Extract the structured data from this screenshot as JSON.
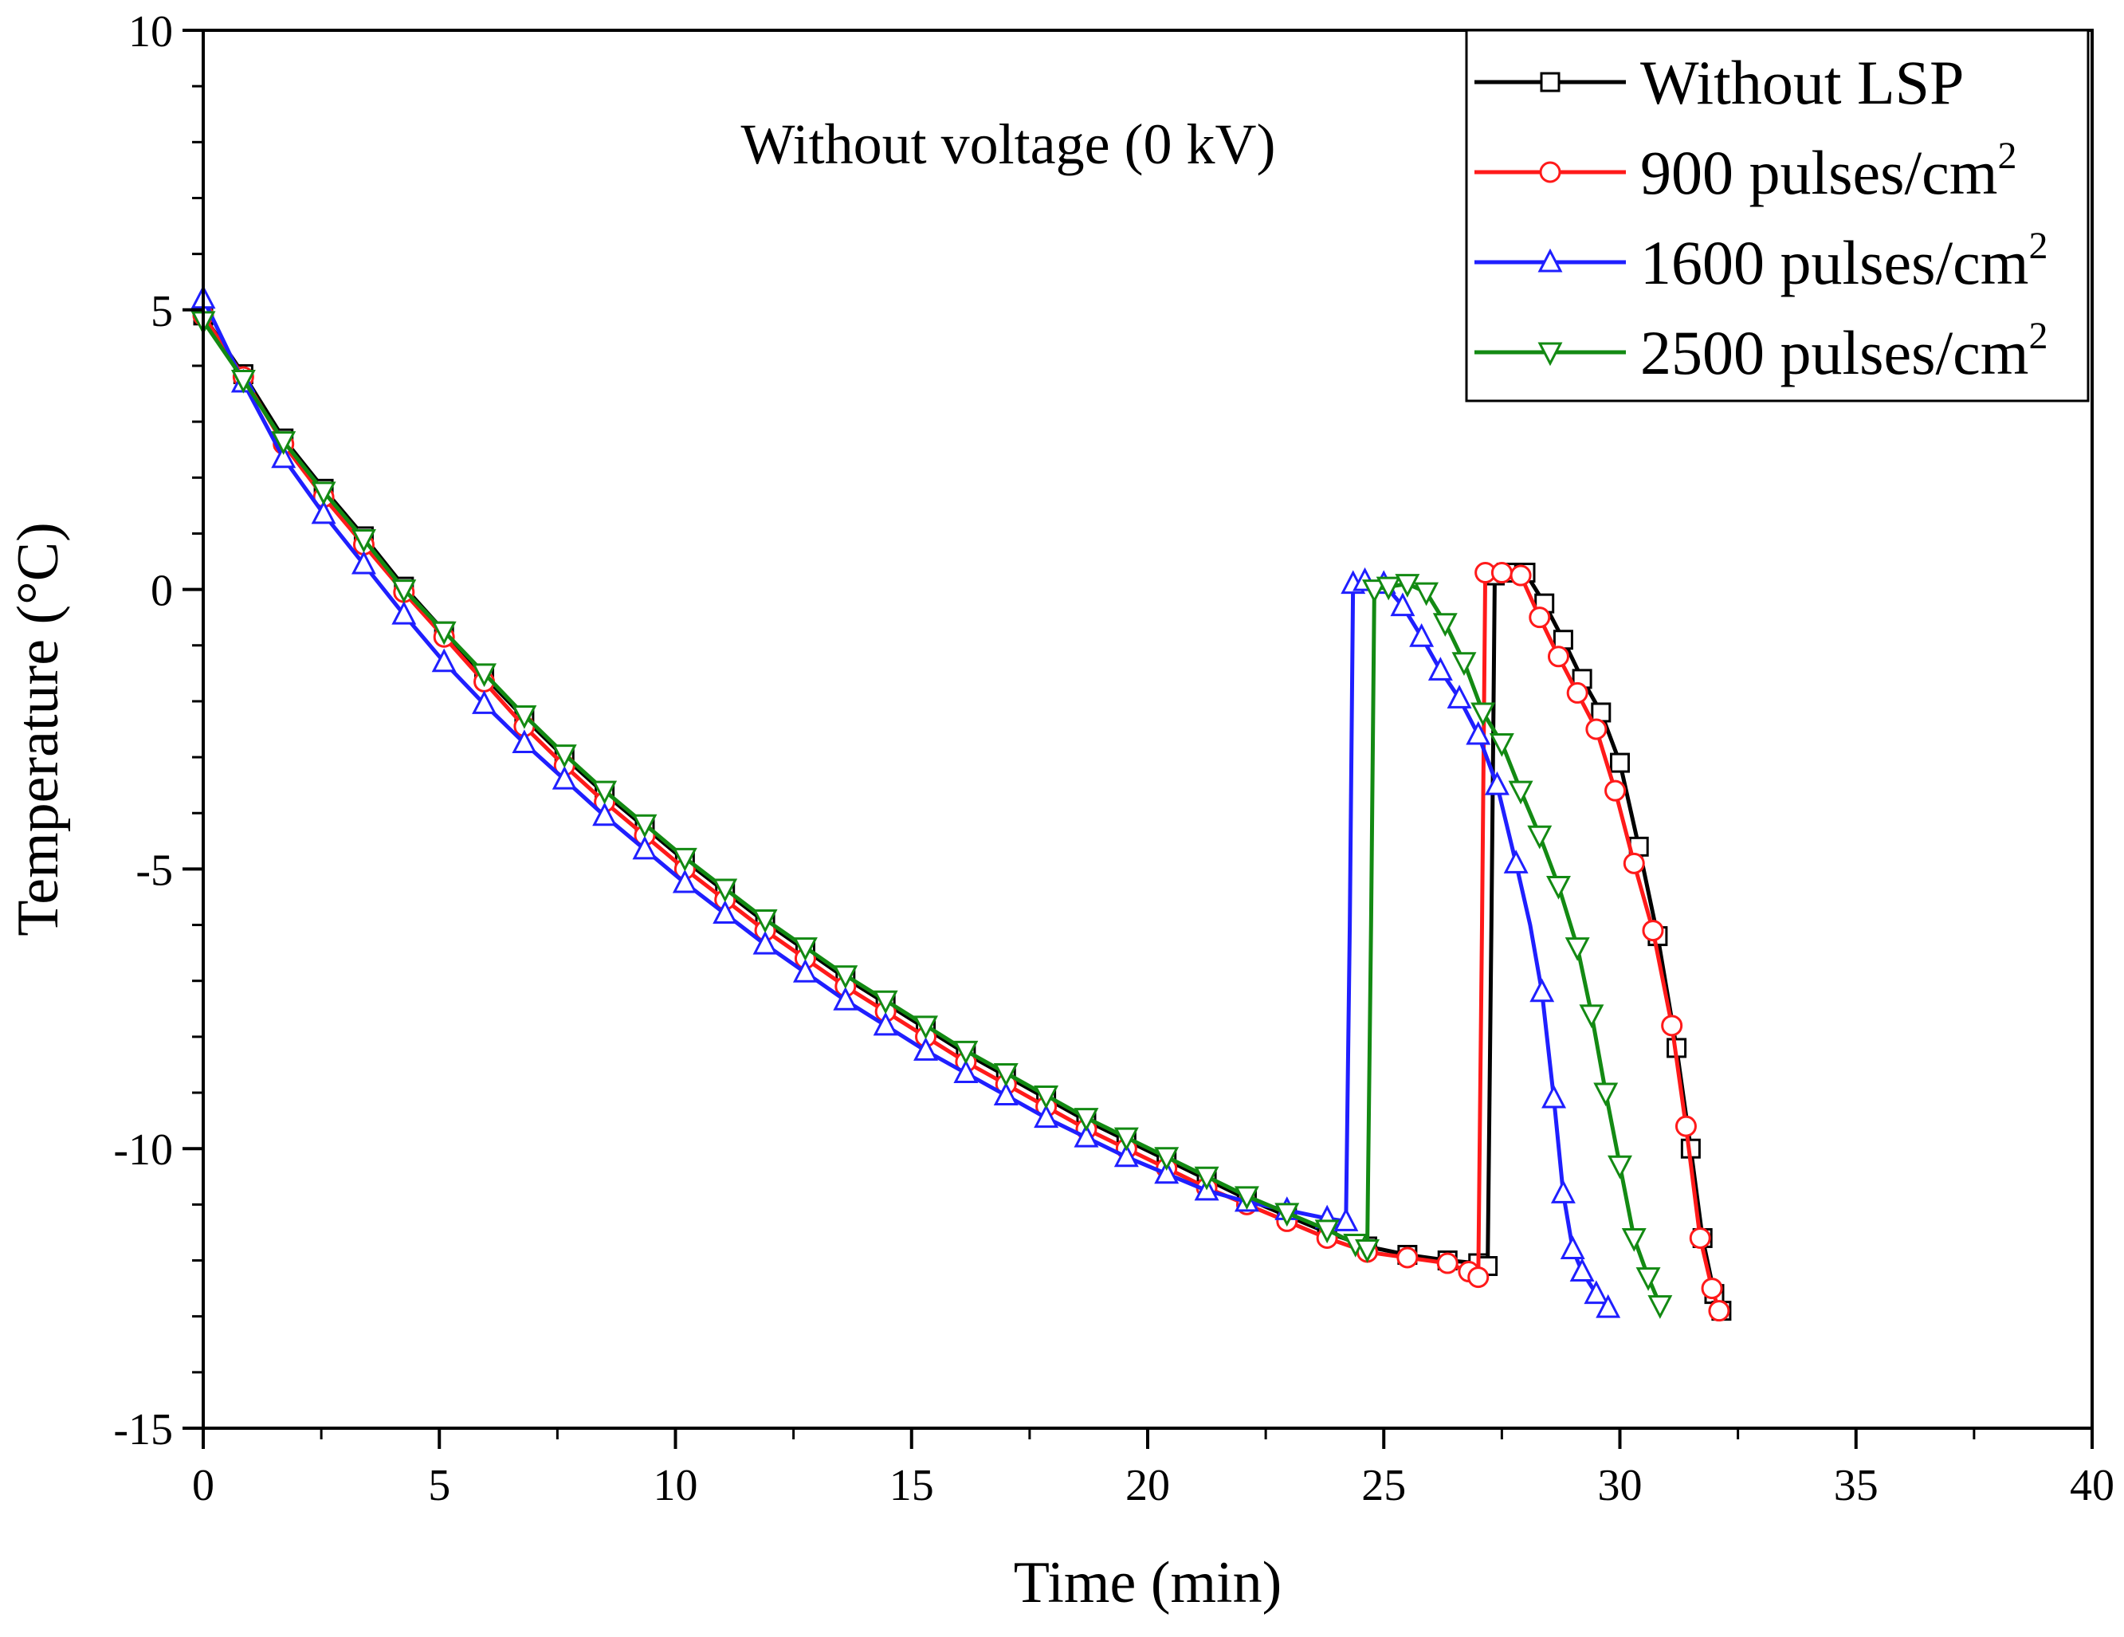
{
  "chart_data": {
    "type": "line",
    "title": "",
    "annotation": "Without voltage (0 kV)",
    "xlabel": "Time (min)",
    "ylabel": "Temperature (°C)",
    "xlim": [
      0,
      40
    ],
    "ylim": [
      -15,
      10
    ],
    "xticks": [
      0,
      5,
      10,
      15,
      20,
      25,
      30,
      35,
      40
    ],
    "xtick_labels": [
      "0",
      "5",
      "10",
      "15",
      "20",
      "25",
      "30",
      "35",
      "40"
    ],
    "yticks": [
      -15,
      -10,
      -5,
      0,
      5,
      10
    ],
    "ytick_labels": [
      "-15",
      "-10",
      "-5",
      "0",
      "5",
      "10"
    ],
    "grid": false,
    "legend_position": "top-right",
    "series": [
      {
        "name": "Without LSP",
        "legend_main": "Without LSP",
        "legend_sup": "",
        "color": "#000000",
        "marker": "square",
        "points": [
          [
            0,
            4.9
          ],
          [
            0.85,
            3.85
          ],
          [
            1.7,
            2.7
          ],
          [
            2.55,
            1.8
          ],
          [
            3.4,
            0.95
          ],
          [
            4.25,
            0.05
          ],
          [
            5.1,
            -0.75
          ],
          [
            5.95,
            -1.55
          ],
          [
            6.8,
            -2.3
          ],
          [
            7.65,
            -3.0
          ],
          [
            8.5,
            -3.65
          ],
          [
            9.35,
            -4.25
          ],
          [
            10.2,
            -4.85
          ],
          [
            11.05,
            -5.4
          ],
          [
            11.9,
            -5.95
          ],
          [
            12.75,
            -6.45
          ],
          [
            13.6,
            -6.95
          ],
          [
            14.45,
            -7.4
          ],
          [
            15.3,
            -7.85
          ],
          [
            16.15,
            -8.3
          ],
          [
            17.0,
            -8.7
          ],
          [
            17.85,
            -9.1
          ],
          [
            18.7,
            -9.5
          ],
          [
            19.55,
            -9.85
          ],
          [
            20.4,
            -10.2
          ],
          [
            21.25,
            -10.55
          ],
          [
            22.1,
            -10.9
          ],
          [
            22.95,
            -11.2
          ],
          [
            23.8,
            -11.5
          ],
          [
            24.65,
            -11.75
          ],
          [
            25.5,
            -11.9
          ],
          [
            26.35,
            -12.0
          ],
          [
            27.0,
            -12.05
          ],
          [
            27.2,
            -12.1
          ],
          [
            27.28,
            -6.0
          ],
          [
            27.35,
            0.25
          ],
          [
            27.6,
            0.3
          ],
          [
            28.0,
            0.3
          ],
          [
            28.4,
            -0.25
          ],
          [
            28.8,
            -0.9
          ],
          [
            29.2,
            -1.6
          ],
          [
            29.6,
            -2.2
          ],
          [
            30.0,
            -3.1
          ],
          [
            30.4,
            -4.6
          ],
          [
            30.8,
            -6.2
          ],
          [
            31.2,
            -8.2
          ],
          [
            31.5,
            -10.0
          ],
          [
            31.75,
            -11.6
          ],
          [
            32.0,
            -12.6
          ],
          [
            32.15,
            -12.9
          ]
        ]
      },
      {
        "name": "900 pulses/cm2",
        "legend_main": "900   pulses/cm",
        "legend_sup": "2",
        "color": "#ff1a1a",
        "marker": "circle",
        "points": [
          [
            0,
            4.9
          ],
          [
            0.85,
            3.8
          ],
          [
            1.7,
            2.6
          ],
          [
            2.55,
            1.65
          ],
          [
            3.4,
            0.8
          ],
          [
            4.25,
            -0.05
          ],
          [
            5.1,
            -0.85
          ],
          [
            5.95,
            -1.65
          ],
          [
            6.8,
            -2.45
          ],
          [
            7.65,
            -3.15
          ],
          [
            8.5,
            -3.8
          ],
          [
            9.35,
            -4.4
          ],
          [
            10.2,
            -5.0
          ],
          [
            11.05,
            -5.55
          ],
          [
            11.9,
            -6.1
          ],
          [
            12.75,
            -6.6
          ],
          [
            13.6,
            -7.1
          ],
          [
            14.45,
            -7.55
          ],
          [
            15.3,
            -8.0
          ],
          [
            16.15,
            -8.45
          ],
          [
            17.0,
            -8.85
          ],
          [
            17.85,
            -9.25
          ],
          [
            18.7,
            -9.65
          ],
          [
            19.55,
            -10.0
          ],
          [
            20.4,
            -10.35
          ],
          [
            21.25,
            -10.7
          ],
          [
            22.1,
            -11.0
          ],
          [
            22.95,
            -11.3
          ],
          [
            23.8,
            -11.6
          ],
          [
            24.65,
            -11.85
          ],
          [
            25.5,
            -11.95
          ],
          [
            26.35,
            -12.05
          ],
          [
            26.8,
            -12.2
          ],
          [
            27.0,
            -12.3
          ],
          [
            27.08,
            -6.0
          ],
          [
            27.15,
            0.3
          ],
          [
            27.5,
            0.3
          ],
          [
            27.9,
            0.25
          ],
          [
            28.3,
            -0.5
          ],
          [
            28.7,
            -1.2
          ],
          [
            29.1,
            -1.85
          ],
          [
            29.5,
            -2.5
          ],
          [
            29.9,
            -3.6
          ],
          [
            30.3,
            -4.9
          ],
          [
            30.7,
            -6.1
          ],
          [
            31.1,
            -7.8
          ],
          [
            31.4,
            -9.6
          ],
          [
            31.7,
            -11.6
          ],
          [
            31.95,
            -12.5
          ],
          [
            32.1,
            -12.9
          ]
        ]
      },
      {
        "name": "1600 pulses/cm2",
        "legend_main": "1600 pulses/cm",
        "legend_sup": "2",
        "color": "#1f1fff",
        "marker": "triangle-up",
        "points": [
          [
            0,
            5.2
          ],
          [
            0.85,
            3.7
          ],
          [
            1.7,
            2.35
          ],
          [
            2.55,
            1.35
          ],
          [
            3.4,
            0.45
          ],
          [
            4.25,
            -0.45
          ],
          [
            5.1,
            -1.3
          ],
          [
            5.95,
            -2.05
          ],
          [
            6.8,
            -2.75
          ],
          [
            7.65,
            -3.4
          ],
          [
            8.5,
            -4.05
          ],
          [
            9.35,
            -4.65
          ],
          [
            10.2,
            -5.25
          ],
          [
            11.05,
            -5.8
          ],
          [
            11.9,
            -6.35
          ],
          [
            12.75,
            -6.85
          ],
          [
            13.6,
            -7.35
          ],
          [
            14.45,
            -7.8
          ],
          [
            15.3,
            -8.25
          ],
          [
            16.15,
            -8.65
          ],
          [
            17.0,
            -9.05
          ],
          [
            17.85,
            -9.45
          ],
          [
            18.7,
            -9.8
          ],
          [
            19.55,
            -10.15
          ],
          [
            20.4,
            -10.45
          ],
          [
            21.25,
            -10.75
          ],
          [
            22.1,
            -10.95
          ],
          [
            22.95,
            -11.1
          ],
          [
            23.8,
            -11.25
          ],
          [
            24.2,
            -11.3
          ],
          [
            24.28,
            -6.0
          ],
          [
            24.35,
            0.1
          ],
          [
            24.6,
            0.15
          ],
          [
            25.0,
            0.1
          ],
          [
            25.4,
            -0.3
          ],
          [
            25.8,
            -0.85
          ],
          [
            26.2,
            -1.45
          ],
          [
            26.6,
            -1.95
          ],
          [
            27.0,
            -2.6
          ],
          [
            27.4,
            -3.5
          ],
          [
            27.8,
            -4.9
          ],
          [
            28.1,
            -6.0
          ],
          [
            28.35,
            -7.2
          ],
          [
            28.6,
            -9.1
          ],
          [
            28.8,
            -10.8
          ],
          [
            29.0,
            -11.8
          ],
          [
            29.2,
            -12.2
          ],
          [
            29.5,
            -12.6
          ],
          [
            29.75,
            -12.85
          ]
        ]
      },
      {
        "name": "2500 pulses/cm2",
        "legend_main": "2500 pulses/cm",
        "legend_sup": "2",
        "color": "#138a13",
        "marker": "triangle-down",
        "points": [
          [
            0,
            4.8
          ],
          [
            0.85,
            3.75
          ],
          [
            1.7,
            2.65
          ],
          [
            2.55,
            1.75
          ],
          [
            3.4,
            0.9
          ],
          [
            4.25,
            0.0
          ],
          [
            5.1,
            -0.75
          ],
          [
            5.95,
            -1.5
          ],
          [
            6.8,
            -2.25
          ],
          [
            7.65,
            -2.95
          ],
          [
            8.5,
            -3.6
          ],
          [
            9.35,
            -4.2
          ],
          [
            10.2,
            -4.8
          ],
          [
            11.05,
            -5.35
          ],
          [
            11.9,
            -5.9
          ],
          [
            12.75,
            -6.4
          ],
          [
            13.6,
            -6.9
          ],
          [
            14.45,
            -7.35
          ],
          [
            15.3,
            -7.8
          ],
          [
            16.15,
            -8.25
          ],
          [
            17.0,
            -8.65
          ],
          [
            17.85,
            -9.05
          ],
          [
            18.7,
            -9.45
          ],
          [
            19.55,
            -9.8
          ],
          [
            20.4,
            -10.15
          ],
          [
            21.25,
            -10.5
          ],
          [
            22.1,
            -10.85
          ],
          [
            22.95,
            -11.15
          ],
          [
            23.8,
            -11.45
          ],
          [
            24.4,
            -11.7
          ],
          [
            24.65,
            -11.8
          ],
          [
            24.73,
            -6.0
          ],
          [
            24.8,
            0.0
          ],
          [
            25.1,
            0.05
          ],
          [
            25.5,
            0.1
          ],
          [
            25.9,
            -0.05
          ],
          [
            26.3,
            -0.6
          ],
          [
            26.7,
            -1.3
          ],
          [
            27.1,
            -2.2
          ],
          [
            27.5,
            -2.75
          ],
          [
            27.9,
            -3.6
          ],
          [
            28.3,
            -4.4
          ],
          [
            28.7,
            -5.3
          ],
          [
            29.1,
            -6.4
          ],
          [
            29.4,
            -7.6
          ],
          [
            29.7,
            -9.0
          ],
          [
            30.0,
            -10.3
          ],
          [
            30.3,
            -11.6
          ],
          [
            30.6,
            -12.3
          ],
          [
            30.85,
            -12.8
          ]
        ]
      }
    ]
  }
}
